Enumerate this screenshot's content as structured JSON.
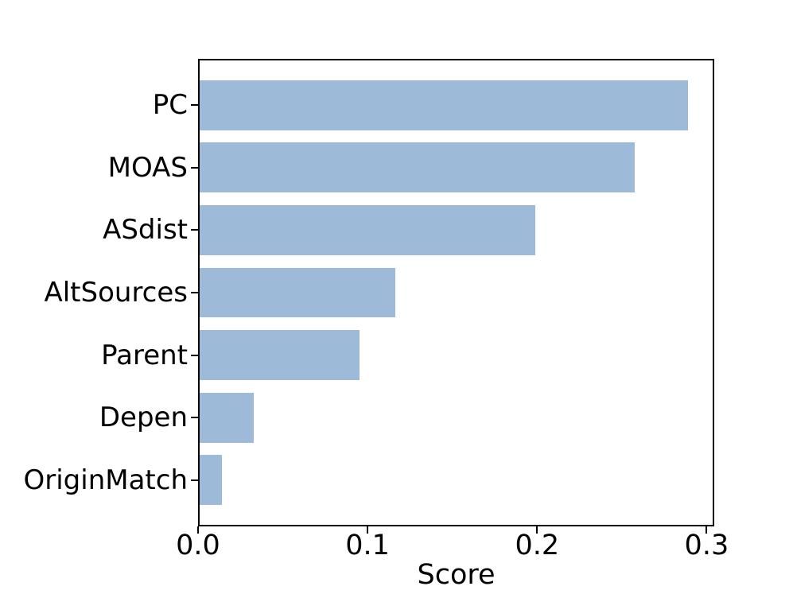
{
  "chart_data": {
    "type": "bar",
    "orientation": "horizontal",
    "title": "",
    "xlabel": "Score",
    "ylabel": "",
    "categories": [
      "PC",
      "MOAS",
      "ASdist",
      "AltSources",
      "Parent",
      "Depen",
      "OriginMatch"
    ],
    "values": [
      0.29,
      0.258,
      0.199,
      0.116,
      0.095,
      0.032,
      0.013
    ],
    "xlim": [
      0,
      0.3045
    ],
    "xticks": [
      0,
      0.1,
      0.2,
      0.3
    ],
    "xtick_labels": [
      "0.0",
      "0.1",
      "0.2",
      "0.3"
    ],
    "grid": false,
    "legend": "none",
    "colors": {
      "bar": "#9dbbd9",
      "axis": "#000000",
      "text": "#000000",
      "background": "#ffffff"
    }
  }
}
